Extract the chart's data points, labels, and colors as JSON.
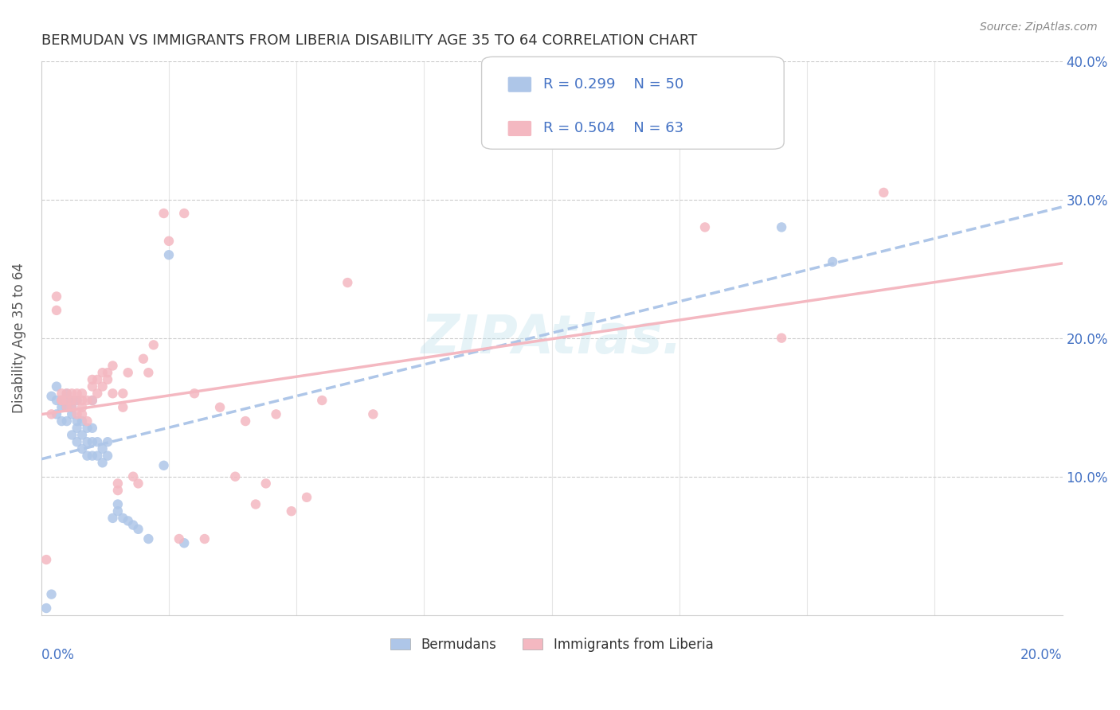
{
  "title": "BERMUDAN VS IMMIGRANTS FROM LIBERIA DISABILITY AGE 35 TO 64 CORRELATION CHART",
  "source": "Source: ZipAtlas.com",
  "ylabel": "Disability Age 35 to 64",
  "x_min": 0.0,
  "x_max": 0.2,
  "y_min": 0.0,
  "y_max": 0.4,
  "bermudan_color": "#aec6e8",
  "liberia_color": "#f4b8c1",
  "bermudan_R": 0.299,
  "bermudan_N": 50,
  "liberia_R": 0.504,
  "liberia_N": 63,
  "legend_label_1": "Bermudans",
  "legend_label_2": "Immigrants from Liberia",
  "watermark": "ZIPAtlas.",
  "background_color": "#ffffff",
  "grid_color": "#cccccc",
  "axis_label_color": "#4472c4",
  "title_color": "#333333",
  "bermudan_x": [
    0.001,
    0.002,
    0.002,
    0.003,
    0.003,
    0.003,
    0.004,
    0.004,
    0.004,
    0.005,
    0.005,
    0.005,
    0.005,
    0.006,
    0.006,
    0.006,
    0.006,
    0.007,
    0.007,
    0.007,
    0.007,
    0.008,
    0.008,
    0.008,
    0.009,
    0.009,
    0.009,
    0.01,
    0.01,
    0.01,
    0.01,
    0.011,
    0.011,
    0.012,
    0.012,
    0.013,
    0.013,
    0.014,
    0.015,
    0.015,
    0.016,
    0.017,
    0.018,
    0.019,
    0.021,
    0.024,
    0.025,
    0.028,
    0.145,
    0.155
  ],
  "bermudan_y": [
    0.005,
    0.158,
    0.015,
    0.145,
    0.155,
    0.165,
    0.14,
    0.15,
    0.155,
    0.14,
    0.15,
    0.155,
    0.16,
    0.13,
    0.145,
    0.15,
    0.155,
    0.125,
    0.135,
    0.14,
    0.155,
    0.12,
    0.13,
    0.14,
    0.115,
    0.125,
    0.135,
    0.115,
    0.125,
    0.135,
    0.155,
    0.115,
    0.125,
    0.11,
    0.12,
    0.115,
    0.125,
    0.07,
    0.075,
    0.08,
    0.07,
    0.068,
    0.065,
    0.062,
    0.055,
    0.108,
    0.26,
    0.052,
    0.28,
    0.255
  ],
  "liberia_x": [
    0.001,
    0.002,
    0.003,
    0.003,
    0.004,
    0.004,
    0.004,
    0.005,
    0.005,
    0.005,
    0.006,
    0.006,
    0.006,
    0.007,
    0.007,
    0.007,
    0.008,
    0.008,
    0.008,
    0.008,
    0.009,
    0.009,
    0.01,
    0.01,
    0.01,
    0.011,
    0.011,
    0.012,
    0.012,
    0.013,
    0.013,
    0.014,
    0.014,
    0.015,
    0.015,
    0.016,
    0.016,
    0.017,
    0.018,
    0.019,
    0.02,
    0.021,
    0.022,
    0.024,
    0.025,
    0.027,
    0.028,
    0.03,
    0.032,
    0.035,
    0.038,
    0.04,
    0.042,
    0.044,
    0.046,
    0.049,
    0.052,
    0.055,
    0.06,
    0.065,
    0.13,
    0.145,
    0.165
  ],
  "liberia_y": [
    0.04,
    0.145,
    0.22,
    0.23,
    0.155,
    0.16,
    0.155,
    0.15,
    0.155,
    0.16,
    0.15,
    0.155,
    0.16,
    0.145,
    0.155,
    0.16,
    0.145,
    0.15,
    0.155,
    0.16,
    0.14,
    0.155,
    0.155,
    0.165,
    0.17,
    0.16,
    0.17,
    0.165,
    0.175,
    0.17,
    0.175,
    0.18,
    0.16,
    0.09,
    0.095,
    0.15,
    0.16,
    0.175,
    0.1,
    0.095,
    0.185,
    0.175,
    0.195,
    0.29,
    0.27,
    0.055,
    0.29,
    0.16,
    0.055,
    0.15,
    0.1,
    0.14,
    0.08,
    0.095,
    0.145,
    0.075,
    0.085,
    0.155,
    0.24,
    0.145,
    0.28,
    0.2,
    0.305
  ]
}
